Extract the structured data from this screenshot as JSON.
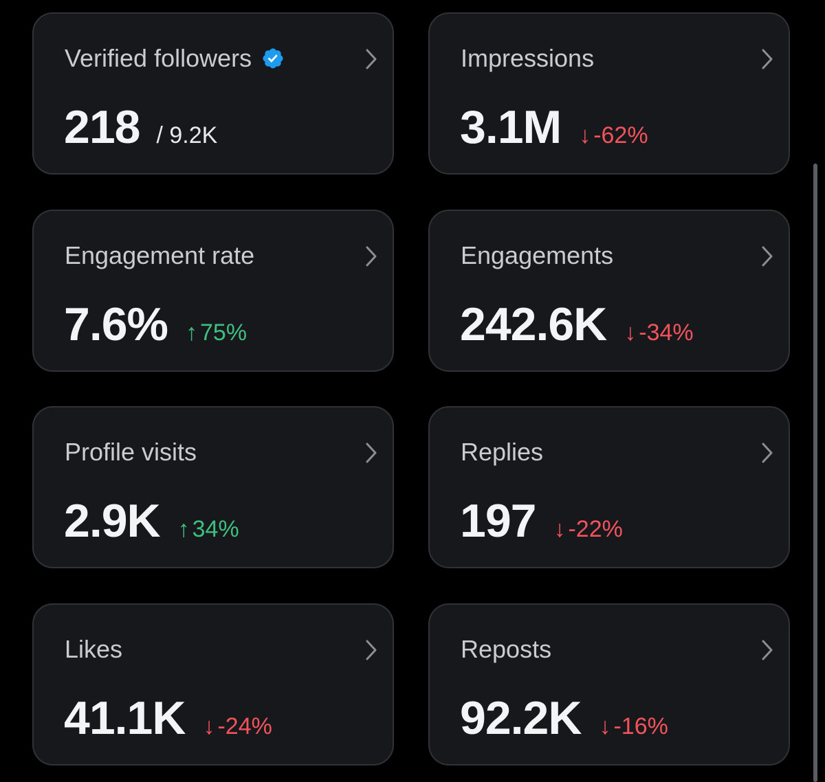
{
  "cards": [
    {
      "title": "Verified followers",
      "value": "218",
      "total": "/ 9.2K"
    },
    {
      "title": "Impressions",
      "value": "3.1M",
      "change": {
        "arrow": "↓",
        "text": "-62%",
        "color": "#f4535c"
      }
    },
    {
      "title": "Engagement rate",
      "value": "7.6%",
      "change": {
        "arrow": "↑",
        "text": "75%",
        "color": "#3fbf7f"
      }
    },
    {
      "title": "Engagements",
      "value": "242.6K",
      "change": {
        "arrow": "↓",
        "text": "-34%",
        "color": "#f4535c"
      }
    },
    {
      "title": "Profile visits",
      "value": "2.9K",
      "change": {
        "arrow": "↑",
        "text": "34%",
        "color": "#3fbf7f"
      }
    },
    {
      "title": "Replies",
      "value": "197",
      "change": {
        "arrow": "↓",
        "text": "-22%",
        "color": "#f4535c"
      }
    },
    {
      "title": "Likes",
      "value": "41.1K",
      "change": {
        "arrow": "↓",
        "text": "-24%",
        "color": "#f4535c"
      }
    },
    {
      "title": "Reposts",
      "value": "92.2K",
      "change": {
        "arrow": "↓",
        "text": "-16%",
        "color": "#f4535c"
      }
    }
  ]
}
